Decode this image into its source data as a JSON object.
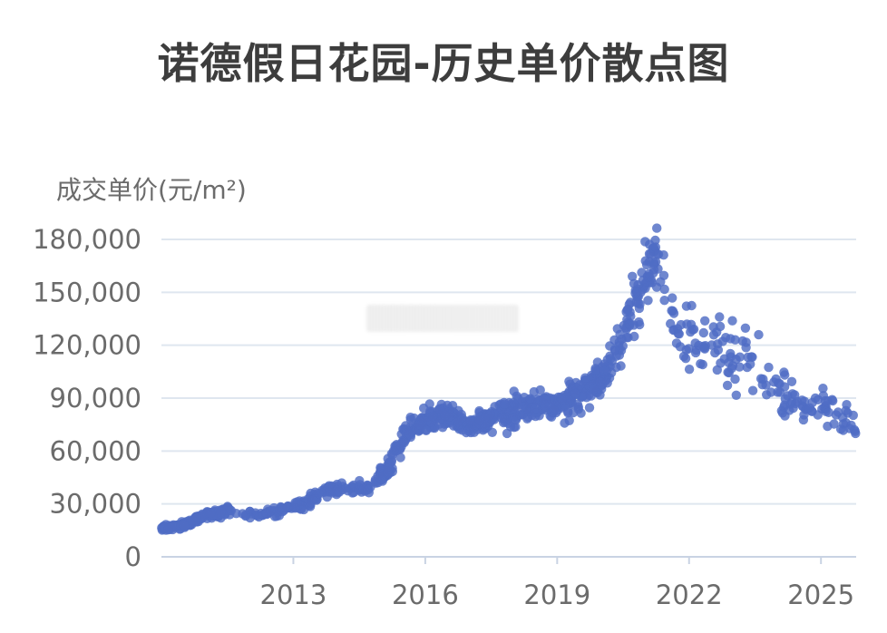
{
  "chart_data": {
    "type": "scatter",
    "title": "诺德假日花园-历史单价散点图",
    "ylabel": "成交单价(元/m²)",
    "xlabel": "",
    "xlim": [
      2010.0,
      2025.8
    ],
    "ylim": [
      0,
      180000
    ],
    "x_ticks": [
      2013,
      2016,
      2019,
      2022,
      2025
    ],
    "x_tick_labels": [
      "2013",
      "2016",
      "2019",
      "2022",
      "2025"
    ],
    "y_ticks": [
      0,
      30000,
      60000,
      90000,
      120000,
      150000,
      180000
    ],
    "y_tick_labels": [
      "0",
      "30,000",
      "60,000",
      "90,000",
      "120,000",
      "150,000",
      "180,000"
    ],
    "grid": "horizontal",
    "point_color": "#4f6cc4",
    "trend_anchors": [
      [
        2010.0,
        16000
      ],
      [
        2010.5,
        18000
      ],
      [
        2011.0,
        24000
      ],
      [
        2011.5,
        26000
      ],
      [
        2012.2,
        24000
      ],
      [
        2012.8,
        27000
      ],
      [
        2013.3,
        31000
      ],
      [
        2013.8,
        38000
      ],
      [
        2014.3,
        38000
      ],
      [
        2014.8,
        40000
      ],
      [
        2015.2,
        52000
      ],
      [
        2015.5,
        68000
      ],
      [
        2016.0,
        78000
      ],
      [
        2016.5,
        80000
      ],
      [
        2017.0,
        74000
      ],
      [
        2017.5,
        78000
      ],
      [
        2018.0,
        82000
      ],
      [
        2018.5,
        86000
      ],
      [
        2019.0,
        85000
      ],
      [
        2019.5,
        92000
      ],
      [
        2020.0,
        100000
      ],
      [
        2020.3,
        112000
      ],
      [
        2020.6,
        132000
      ],
      [
        2020.9,
        150000
      ],
      [
        2021.2,
        172000
      ],
      [
        2021.4,
        158000
      ],
      [
        2021.7,
        132000
      ],
      [
        2022.0,
        124000
      ],
      [
        2022.5,
        122000
      ],
      [
        2023.0,
        112000
      ],
      [
        2023.5,
        115000
      ],
      [
        2023.8,
        102000
      ],
      [
        2024.2,
        90000
      ],
      [
        2024.6,
        84000
      ],
      [
        2025.0,
        88000
      ],
      [
        2025.4,
        80000
      ],
      [
        2025.8,
        74000
      ]
    ],
    "point_count": 1100
  }
}
